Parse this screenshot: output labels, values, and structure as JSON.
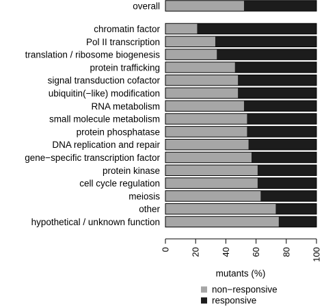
{
  "chart_data": {
    "type": "bar",
    "orientation": "horizontal",
    "stacked": true,
    "overall": {
      "category": "overall",
      "values": {
        "non-responsive": 52,
        "responsive": 48
      }
    },
    "categories": [
      "chromatin factor",
      "Pol II transcription",
      "translation / ribosome biogenesis",
      "protein trafficking",
      "signal transduction cofactor",
      "ubiquitin(−like) modification",
      "RNA metabolism",
      "small molecule metabolism",
      "protein phosphatase",
      "DNA replication and repair",
      "gene−specific transcription factor",
      "protein kinase",
      "cell cycle regulation",
      "meiosis",
      "other",
      "hypothetical / unknown function"
    ],
    "series": [
      {
        "name": "non−responsive",
        "color": "#a6a6a6",
        "values": [
          21,
          33,
          34,
          46,
          48,
          48,
          52,
          54,
          54,
          55,
          57,
          61,
          61,
          63,
          73,
          75
        ]
      },
      {
        "name": "responsive",
        "color": "#1c1c1c",
        "values": [
          79,
          67,
          66,
          54,
          52,
          52,
          48,
          46,
          46,
          45,
          43,
          39,
          39,
          37,
          27,
          25
        ]
      }
    ],
    "xlabel": "mutants (%)",
    "xlim": [
      0,
      100
    ],
    "xticks": [
      "0",
      "20",
      "40",
      "60",
      "80",
      "100"
    ],
    "legend_position": "bottom"
  }
}
